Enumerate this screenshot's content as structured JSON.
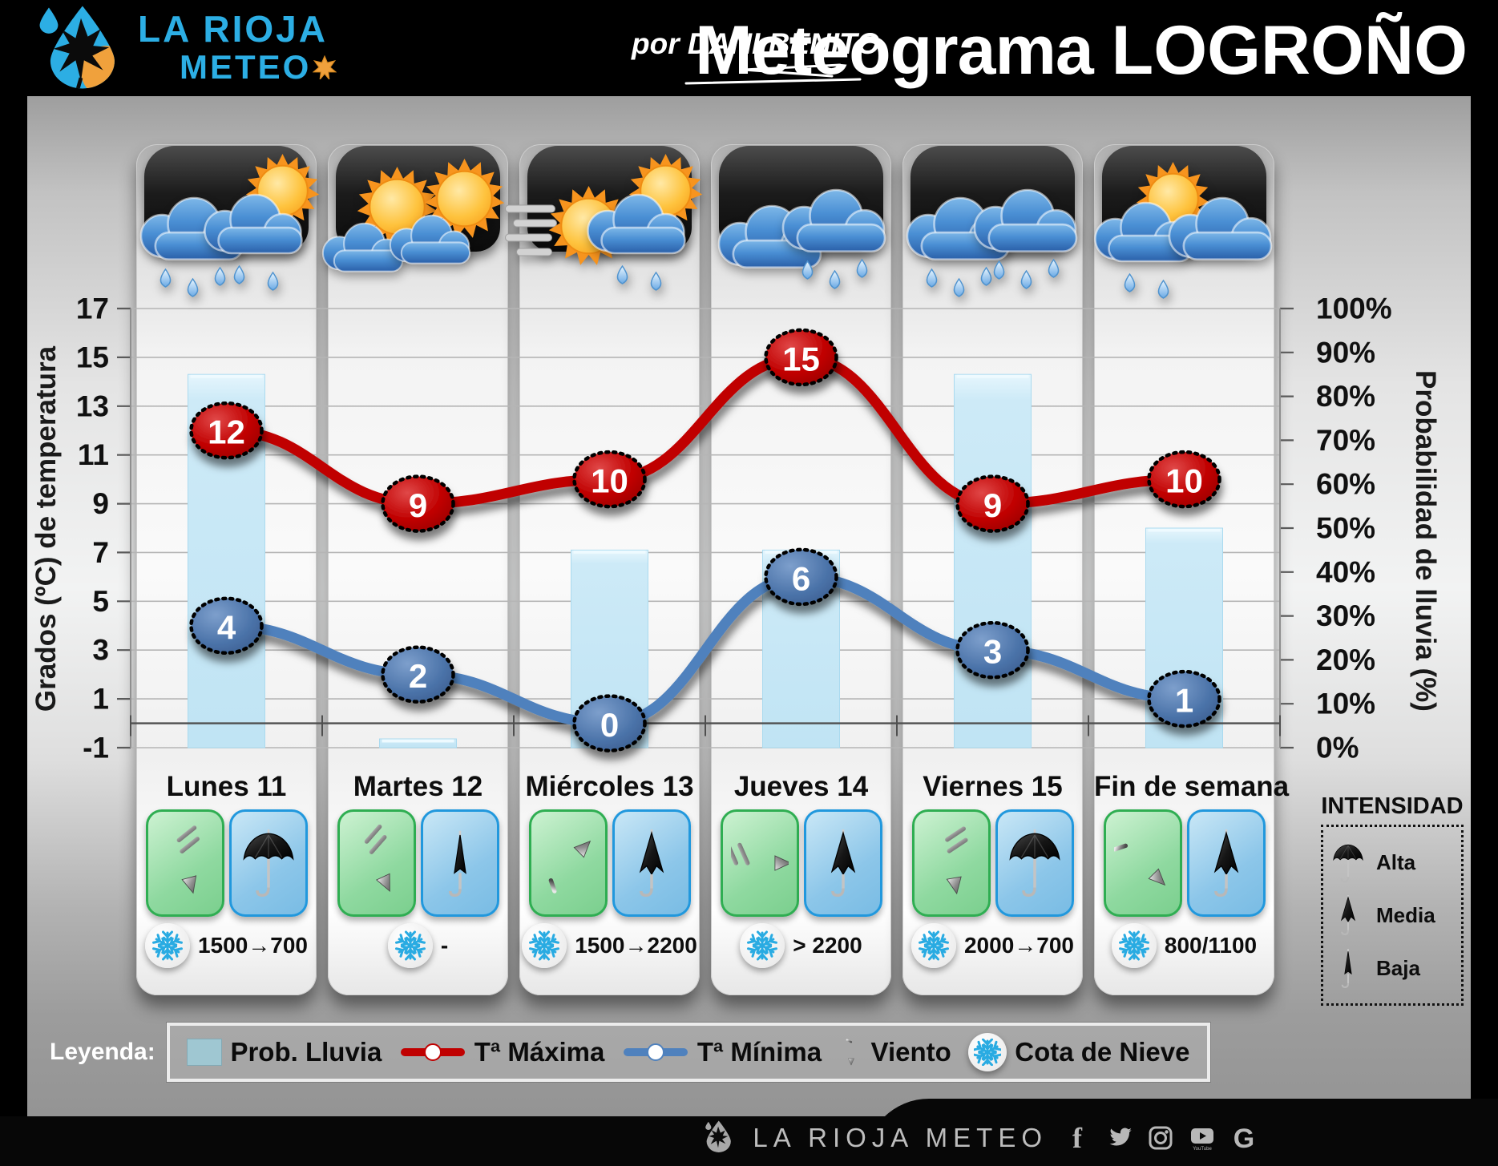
{
  "header": {
    "brand_top": "LA RIOJA",
    "brand_bottom": "METEO",
    "byline": "por DANI BENITO",
    "title_prefix": "Meteograma ",
    "title_city": "LOGROÑO"
  },
  "chart_data": {
    "type": "combo",
    "categories": [
      "Lunes 11",
      "Martes 12",
      "Miércoles 13",
      "Jueves 14",
      "Viernes 15",
      "Fin de semana"
    ],
    "series": [
      {
        "name": "Prob. Lluvia",
        "type": "bar",
        "axis": "right",
        "unit": "%",
        "values": [
          85,
          2,
          45,
          45,
          85,
          50
        ],
        "color": "#cdeaf7"
      },
      {
        "name": "Tª Máxima",
        "type": "line",
        "axis": "left",
        "unit": "ºC",
        "values": [
          12,
          9,
          10,
          15,
          9,
          10
        ],
        "color": "#c00000"
      },
      {
        "name": "Tª Mínima",
        "type": "line",
        "axis": "left",
        "unit": "ºC",
        "values": [
          4,
          2,
          0,
          6,
          3,
          1
        ],
        "color": "#4f81bd"
      }
    ],
    "left_axis": {
      "title": "Grados (ºC) de temperatura",
      "min": -1,
      "max": 17,
      "tick_step": 2
    },
    "right_axis": {
      "title": "Probabilidad de lluvia (%)",
      "min": 0,
      "max": 100,
      "tick_step": 10,
      "tick_suffix": "%"
    },
    "grid": true,
    "legend_position": "bottom"
  },
  "days": [
    {
      "label": "Lunes 11",
      "weather": [
        "cloud-rain",
        "sun-cloud-rain"
      ],
      "wind": {
        "type": "barb",
        "rotation": -15
      },
      "umbrella": "alta",
      "snow": "1500→700"
    },
    {
      "label": "Martes 12",
      "weather": [
        "sun-cloud",
        "sun-cloud"
      ],
      "wind": {
        "type": "barb",
        "rotation": -25
      },
      "umbrella": "baja",
      "snow": "-"
    },
    {
      "label": "Miércoles 13",
      "weather": [
        "sun-fog",
        "sun-cloud-rain"
      ],
      "wind": {
        "type": "arrow",
        "rotation": -135
      },
      "umbrella": "media",
      "snow": "1500→2200"
    },
    {
      "label": "Jueves 14",
      "weather": [
        "cloud",
        "cloud-rain"
      ],
      "wind": {
        "type": "barb",
        "rotation": -90
      },
      "umbrella": "media",
      "snow": "> 2200"
    },
    {
      "label": "Viernes 15",
      "weather": [
        "cloud-rain",
        "cloud-rain"
      ],
      "wind": {
        "type": "barb",
        "rotation": -10
      },
      "umbrella": "alta",
      "snow": "2000→700"
    },
    {
      "label": "Fin de semana",
      "weather": [
        "sun-cloud-rain",
        "cloud"
      ],
      "wind": {
        "type": "arrow",
        "rotation": -45
      },
      "umbrella": "media",
      "snow": "800/1100"
    }
  ],
  "intensity": {
    "title": "INTENSIDAD",
    "items": [
      {
        "icon": "umbrella-alta",
        "label": "Alta"
      },
      {
        "icon": "umbrella-media",
        "label": "Media"
      },
      {
        "icon": "umbrella-baja",
        "label": "Baja"
      }
    ]
  },
  "legend": {
    "label": "Leyenda:",
    "items": [
      {
        "swatch": "bar",
        "label": "Prob. Lluvia"
      },
      {
        "swatch": "line-red",
        "label": "Tª Máxima"
      },
      {
        "swatch": "line-blue",
        "label": "Tª Mínima"
      },
      {
        "swatch": "wind",
        "label": "Viento"
      },
      {
        "swatch": "snow",
        "label": "Cota de Nieve"
      }
    ]
  },
  "footer": {
    "brand": "LA RIOJA METEO",
    "socials": [
      "facebook",
      "twitter",
      "instagram",
      "youtube",
      "google"
    ]
  },
  "colors": {
    "accent_cyan": "#2caee4",
    "temp_max": "#c00000",
    "temp_min": "#4f81bd",
    "rain_bar": "#cdeaf7",
    "snowflake": "#29abe2",
    "wind_box_border": "#2fae52",
    "umbrella_box_border": "#2198dd",
    "leaf_orange": "#f0a13c"
  }
}
